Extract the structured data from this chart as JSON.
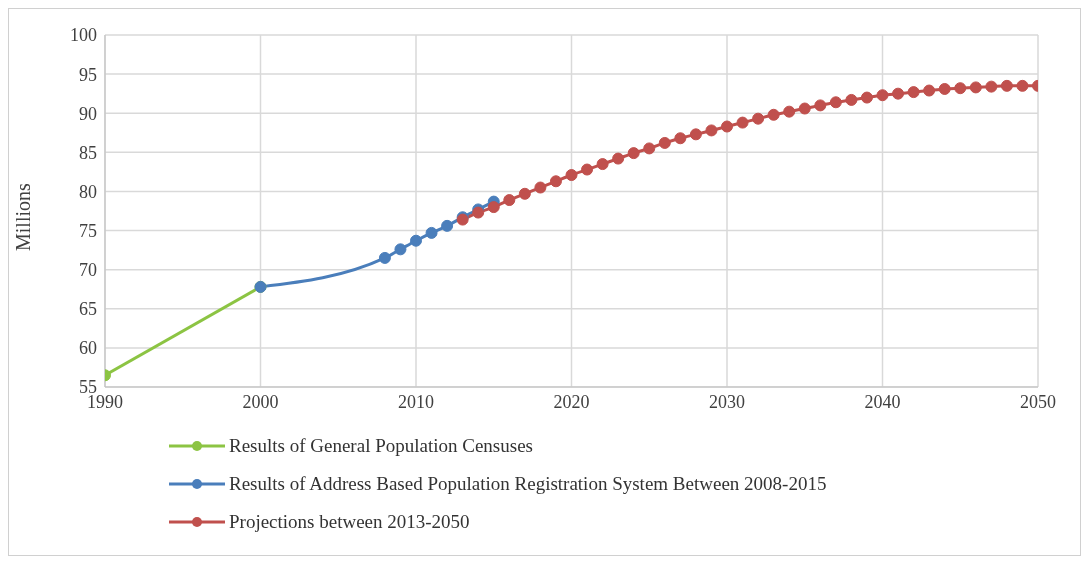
{
  "chart_data": {
    "type": "line",
    "ylabel": "Millions",
    "xlim": [
      1990,
      2050
    ],
    "xticks": [
      1990,
      2000,
      2010,
      2020,
      2030,
      2040,
      2050
    ],
    "ylim": [
      55,
      100
    ],
    "yticks": [
      55,
      60,
      65,
      70,
      75,
      80,
      85,
      90,
      95,
      100
    ],
    "grid": true,
    "legend": "bottom",
    "marker": "circle",
    "line_style": "solid",
    "series": [
      {
        "name": "Results of General Population Censuses",
        "color": "#8cc443",
        "x": [
          1990,
          2000
        ],
        "values": [
          56.5,
          67.8
        ]
      },
      {
        "name": "Results of Address Based Population Registration System Between 2008-2015",
        "color": "#4a7ebb",
        "x": [
          2000,
          2008,
          2009,
          2010,
          2011,
          2012,
          2013,
          2014,
          2015
        ],
        "values": [
          67.8,
          71.5,
          72.6,
          73.7,
          74.7,
          75.6,
          76.7,
          77.7,
          78.7
        ]
      },
      {
        "name": "Projections between 2013-2050",
        "color": "#c0504d",
        "x": [
          2013,
          2014,
          2015,
          2016,
          2017,
          2018,
          2019,
          2020,
          2021,
          2022,
          2023,
          2024,
          2025,
          2026,
          2027,
          2028,
          2029,
          2030,
          2031,
          2032,
          2033,
          2034,
          2035,
          2036,
          2037,
          2038,
          2039,
          2040,
          2041,
          2042,
          2043,
          2044,
          2045,
          2046,
          2047,
          2048,
          2049,
          2050
        ],
        "values": [
          76.4,
          77.3,
          78.0,
          78.9,
          79.7,
          80.5,
          81.3,
          82.1,
          82.8,
          83.5,
          84.2,
          84.9,
          85.5,
          86.2,
          86.8,
          87.3,
          87.8,
          88.3,
          88.8,
          89.3,
          89.8,
          90.2,
          90.6,
          91.0,
          91.4,
          91.7,
          92.0,
          92.3,
          92.5,
          92.7,
          92.9,
          93.1,
          93.2,
          93.3,
          93.4,
          93.5,
          93.5,
          93.5
        ]
      }
    ]
  }
}
